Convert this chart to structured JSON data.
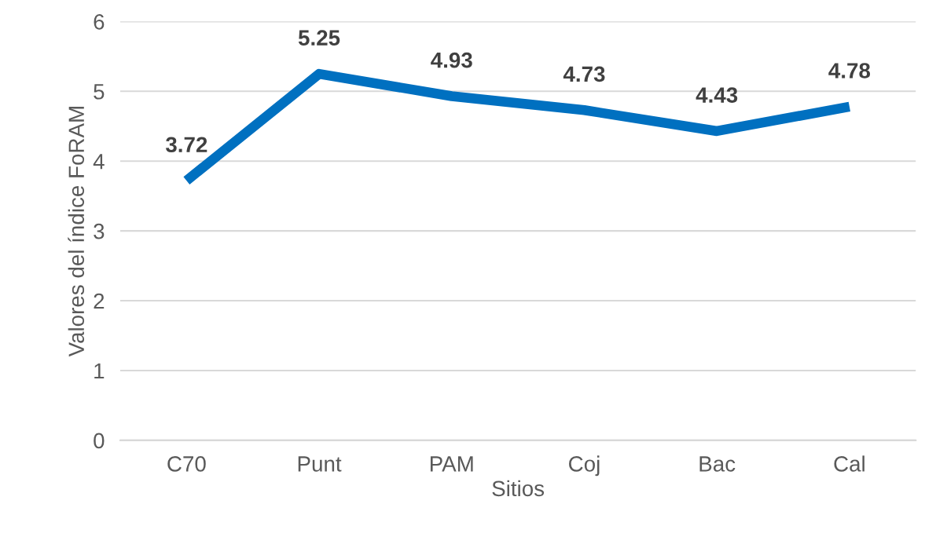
{
  "chart_data": {
    "type": "line",
    "xlabel": "Sitios",
    "ylabel": "Valores del índice FoRAM",
    "categories": [
      "C70",
      "Punt",
      "PAM",
      "Coj",
      "Bac",
      "Cal"
    ],
    "series": [
      {
        "color": "#0070c0",
        "values": [
          3.72,
          5.25,
          4.93,
          4.73,
          4.43,
          4.78
        ]
      }
    ],
    "ylim": [
      0,
      6
    ],
    "yticks": [
      0,
      1,
      2,
      3,
      4,
      5,
      6
    ],
    "grid": "y",
    "data_labels": true,
    "marker": "none",
    "line_style": "solid"
  }
}
